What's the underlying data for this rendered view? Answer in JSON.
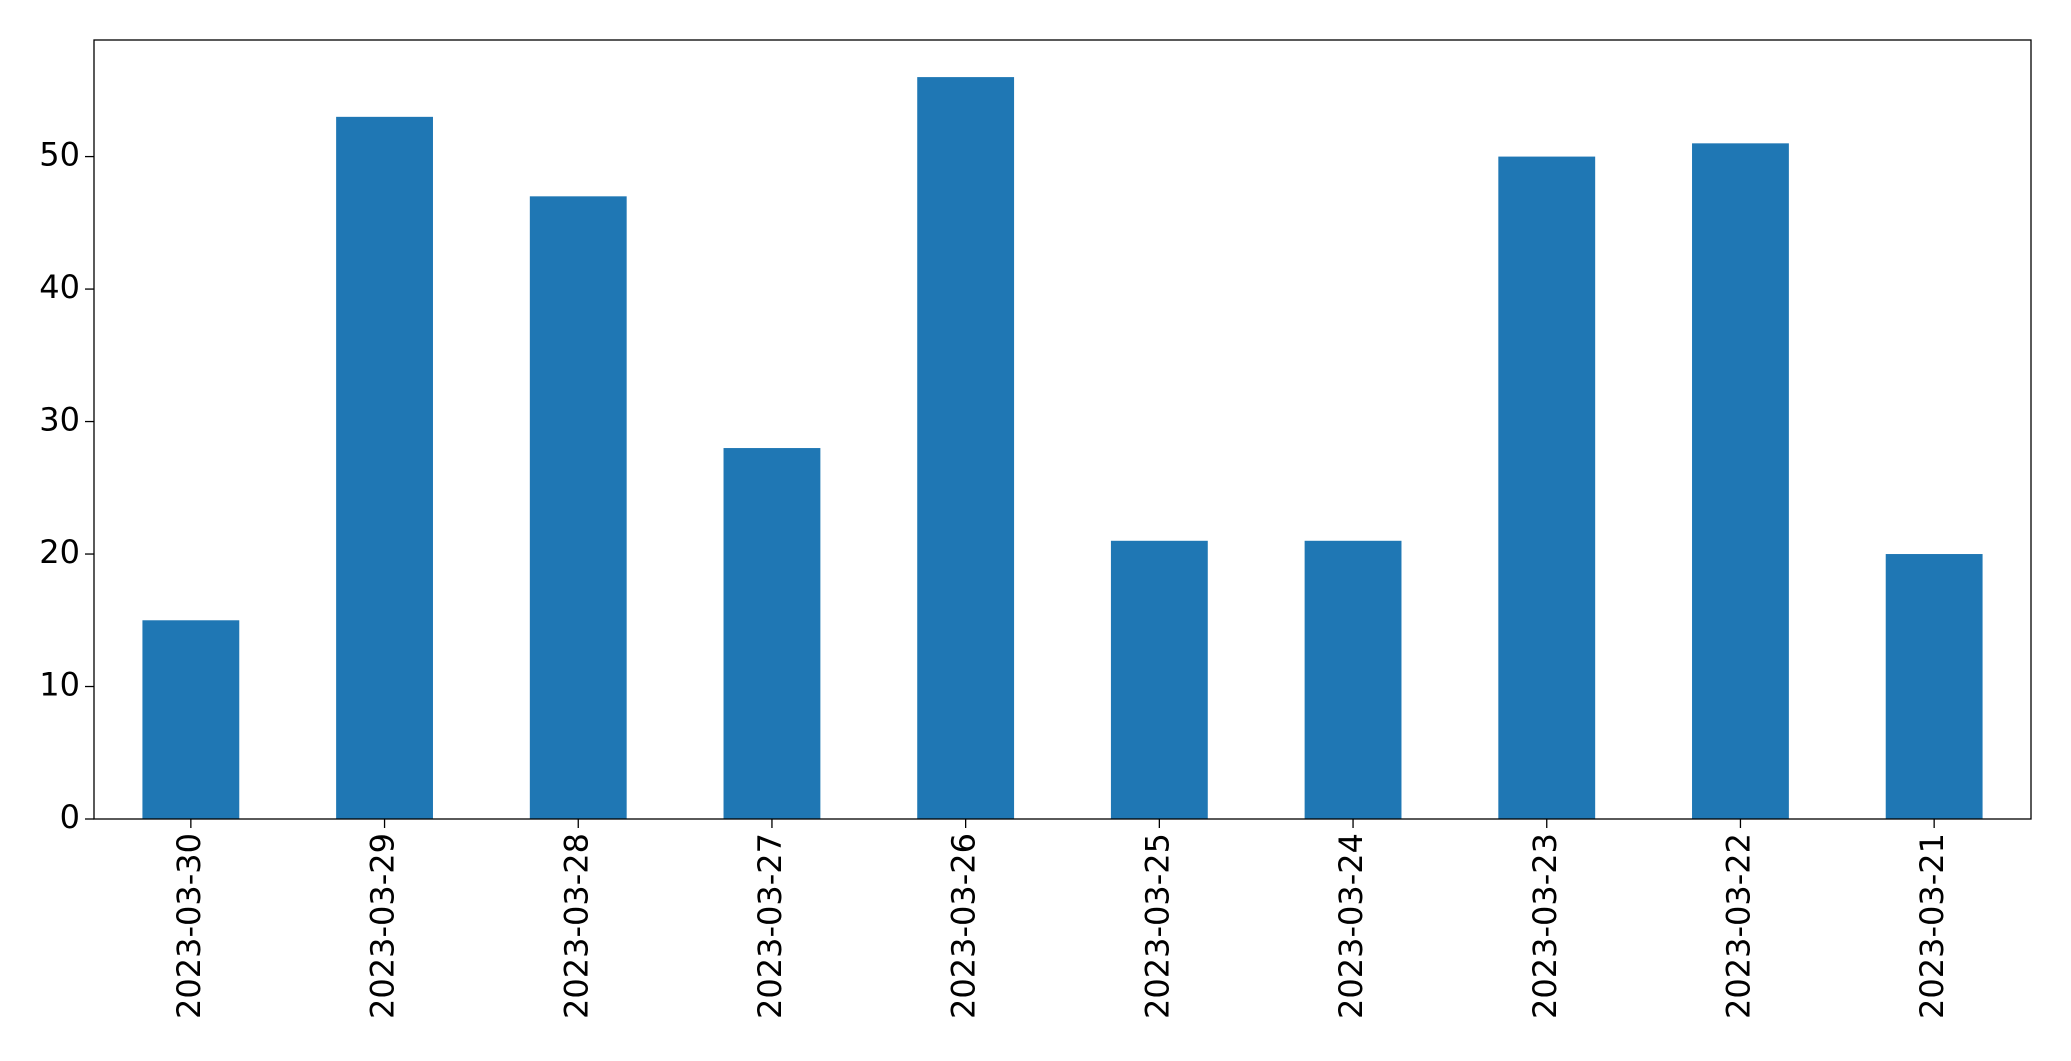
{
  "chart_data": {
    "type": "bar",
    "categories": [
      "2023-03-30",
      "2023-03-29",
      "2023-03-28",
      "2023-03-27",
      "2023-03-26",
      "2023-03-25",
      "2023-03-24",
      "2023-03-23",
      "2023-03-22",
      "2023-03-21"
    ],
    "values": [
      15,
      53,
      47,
      28,
      56,
      21,
      21,
      50,
      51,
      20
    ],
    "color": "#1f77b4",
    "ylim": [
      0,
      58.8
    ],
    "yticks": [
      0,
      10,
      20,
      30,
      40,
      50
    ],
    "grid": false
  }
}
